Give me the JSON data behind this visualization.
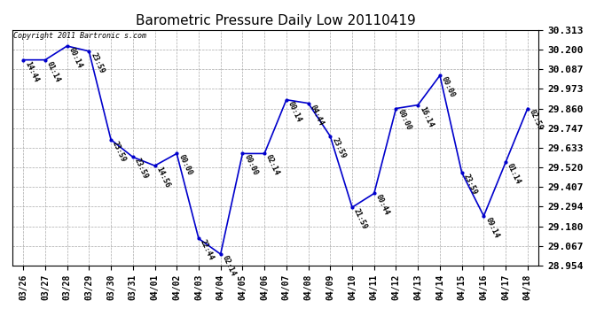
{
  "title": "Barometric Pressure Daily Low 20110419",
  "copyright": "Copyright 2011 Bartronic s.com",
  "x_labels": [
    "03/26",
    "03/27",
    "03/28",
    "03/29",
    "03/30",
    "03/31",
    "04/01",
    "04/02",
    "04/03",
    "04/04",
    "04/05",
    "04/06",
    "04/07",
    "04/08",
    "04/09",
    "04/10",
    "04/11",
    "04/12",
    "04/13",
    "04/14",
    "04/15",
    "04/16",
    "04/17",
    "04/18"
  ],
  "y_values": [
    30.14,
    30.14,
    30.22,
    30.19,
    29.68,
    29.58,
    29.53,
    29.6,
    29.11,
    29.02,
    29.6,
    29.6,
    29.91,
    29.89,
    29.7,
    29.29,
    29.37,
    29.86,
    29.88,
    30.05,
    29.49,
    29.24,
    29.55,
    29.86
  ],
  "point_labels": [
    "14:44",
    "01:14",
    "00:14",
    "23:59",
    "23:59",
    "23:59",
    "14:56",
    "00:00",
    "22:44",
    "02:14",
    "00:00",
    "02:14",
    "00:14",
    "04:44",
    "23:59",
    "21:59",
    "00:44",
    "00:00",
    "16:14",
    "00:00",
    "23:59",
    "09:14",
    "01:14",
    "02:59"
  ],
  "y_min": 28.954,
  "y_max": 30.313,
  "y_ticks": [
    28.954,
    29.067,
    29.18,
    29.294,
    29.407,
    29.52,
    29.633,
    29.747,
    29.86,
    29.973,
    30.087,
    30.2,
    30.313
  ],
  "line_color": "#0000cc",
  "marker_color": "#0000cc",
  "background_color": "#ffffff",
  "grid_color": "#aaaaaa",
  "title_fontsize": 11,
  "point_label_fontsize": 6,
  "tick_fontsize": 7,
  "copyright_fontsize": 6
}
